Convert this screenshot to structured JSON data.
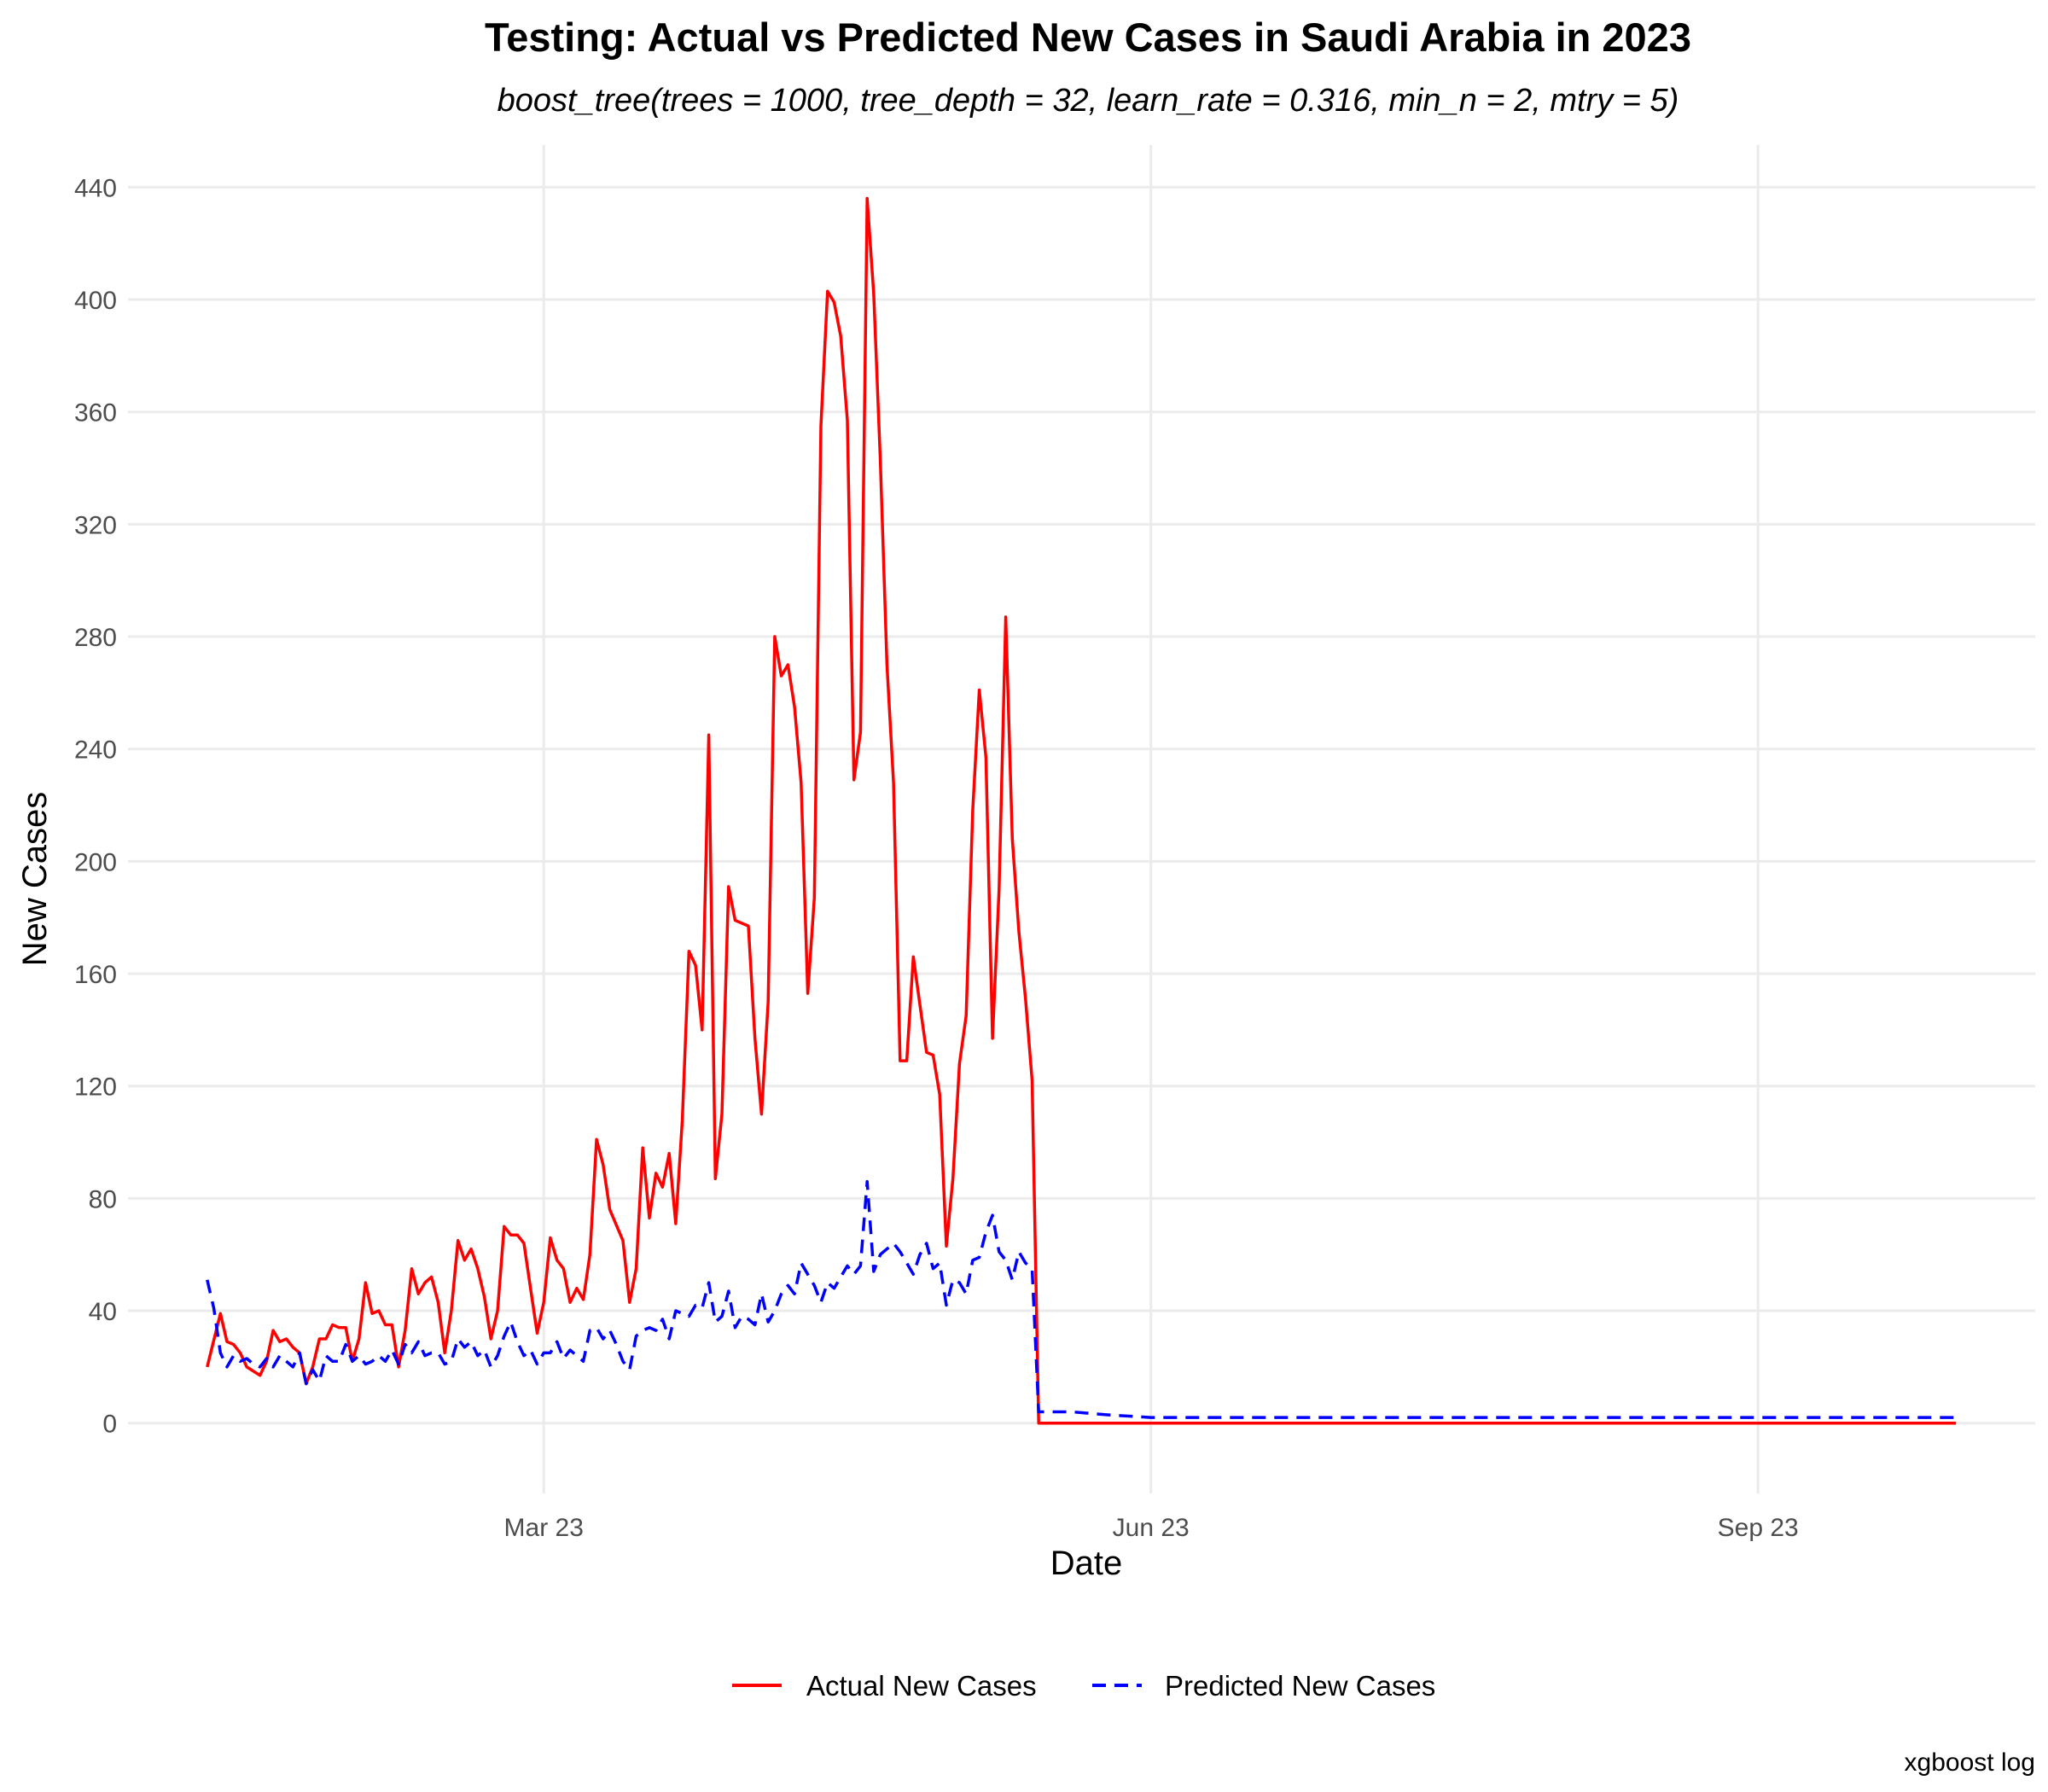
{
  "chart_data": {
    "type": "line",
    "title": "Testing: Actual vs Predicted New Cases in Saudi Arabia in 2023",
    "subtitle": "boost_tree(trees = 1000, tree_depth = 32, learn_rate = 0.316, min_n = 2, mtry = 5)",
    "xlabel": "Date",
    "ylabel": "New Cases",
    "caption": "xgboost log",
    "x_axis": {
      "type": "date",
      "range": [
        "2022-12-28",
        "2023-10-13"
      ],
      "ticks": [
        {
          "date": "2023-03-01",
          "label": "Mar 23"
        },
        {
          "date": "2023-06-01",
          "label": "Jun 23"
        },
        {
          "date": "2023-09-01",
          "label": "Sep 23"
        }
      ]
    },
    "y_axis": {
      "range": [
        -25,
        455
      ],
      "ticks": [
        0,
        40,
        80,
        120,
        160,
        200,
        240,
        280,
        320,
        360,
        400,
        440
      ]
    },
    "grid": true,
    "legend_position": "bottom",
    "series": [
      {
        "name": "Actual New Cases",
        "color": "#ff0000",
        "style": "solid",
        "points": [
          [
            "2023-01-09",
            20
          ],
          [
            "2023-01-11",
            39
          ],
          [
            "2023-01-12",
            29
          ],
          [
            "2023-01-13",
            28
          ],
          [
            "2023-01-14",
            25
          ],
          [
            "2023-01-15",
            20
          ],
          [
            "2023-01-17",
            17
          ],
          [
            "2023-01-18",
            22
          ],
          [
            "2023-01-19",
            33
          ],
          [
            "2023-01-20",
            29
          ],
          [
            "2023-01-21",
            30
          ],
          [
            "2023-01-22",
            27
          ],
          [
            "2023-01-23",
            25
          ],
          [
            "2023-01-24",
            14
          ],
          [
            "2023-01-25",
            20
          ],
          [
            "2023-01-26",
            30
          ],
          [
            "2023-01-27",
            30
          ],
          [
            "2023-01-28",
            35
          ],
          [
            "2023-01-29",
            34
          ],
          [
            "2023-01-30",
            34
          ],
          [
            "2023-01-31",
            22
          ],
          [
            "2023-02-01",
            30
          ],
          [
            "2023-02-02",
            50
          ],
          [
            "2023-02-03",
            39
          ],
          [
            "2023-02-04",
            40
          ],
          [
            "2023-02-05",
            35
          ],
          [
            "2023-02-06",
            35
          ],
          [
            "2023-02-07",
            20
          ],
          [
            "2023-02-08",
            33
          ],
          [
            "2023-02-09",
            55
          ],
          [
            "2023-02-10",
            46
          ],
          [
            "2023-02-11",
            50
          ],
          [
            "2023-02-12",
            52
          ],
          [
            "2023-02-13",
            43
          ],
          [
            "2023-02-14",
            25
          ],
          [
            "2023-02-15",
            40
          ],
          [
            "2023-02-16",
            65
          ],
          [
            "2023-02-17",
            58
          ],
          [
            "2023-02-18",
            62
          ],
          [
            "2023-02-19",
            55
          ],
          [
            "2023-02-20",
            45
          ],
          [
            "2023-02-21",
            30
          ],
          [
            "2023-02-22",
            40
          ],
          [
            "2023-02-23",
            70
          ],
          [
            "2023-02-24",
            67
          ],
          [
            "2023-02-25",
            67
          ],
          [
            "2023-02-26",
            64
          ],
          [
            "2023-02-27",
            48
          ],
          [
            "2023-02-28",
            32
          ],
          [
            "2023-03-01",
            43
          ],
          [
            "2023-03-02",
            66
          ],
          [
            "2023-03-03",
            58
          ],
          [
            "2023-03-04",
            55
          ],
          [
            "2023-03-05",
            43
          ],
          [
            "2023-03-06",
            48
          ],
          [
            "2023-03-07",
            44
          ],
          [
            "2023-03-08",
            60
          ],
          [
            "2023-03-09",
            101
          ],
          [
            "2023-03-10",
            92
          ],
          [
            "2023-03-11",
            76
          ],
          [
            "2023-03-13",
            65
          ],
          [
            "2023-03-14",
            43
          ],
          [
            "2023-03-15",
            55
          ],
          [
            "2023-03-16",
            98
          ],
          [
            "2023-03-17",
            73
          ],
          [
            "2023-03-18",
            89
          ],
          [
            "2023-03-19",
            84
          ],
          [
            "2023-03-20",
            96
          ],
          [
            "2023-03-21",
            71
          ],
          [
            "2023-03-22",
            108
          ],
          [
            "2023-03-23",
            168
          ],
          [
            "2023-03-24",
            163
          ],
          [
            "2023-03-25",
            140
          ],
          [
            "2023-03-26",
            245
          ],
          [
            "2023-03-27",
            87
          ],
          [
            "2023-03-28",
            110
          ],
          [
            "2023-03-29",
            191
          ],
          [
            "2023-03-30",
            179
          ],
          [
            "2023-03-31",
            178
          ],
          [
            "2023-04-01",
            177
          ],
          [
            "2023-04-02",
            137
          ],
          [
            "2023-04-03",
            110
          ],
          [
            "2023-04-04",
            150
          ],
          [
            "2023-04-05",
            280
          ],
          [
            "2023-04-06",
            266
          ],
          [
            "2023-04-07",
            270
          ],
          [
            "2023-04-08",
            255
          ],
          [
            "2023-04-09",
            228
          ],
          [
            "2023-04-10",
            153
          ],
          [
            "2023-04-11",
            187
          ],
          [
            "2023-04-12",
            355
          ],
          [
            "2023-04-13",
            403
          ],
          [
            "2023-04-14",
            399
          ],
          [
            "2023-04-15",
            387
          ],
          [
            "2023-04-16",
            357
          ],
          [
            "2023-04-17",
            229
          ],
          [
            "2023-04-18",
            246
          ],
          [
            "2023-04-19",
            436
          ],
          [
            "2023-04-20",
            402
          ],
          [
            "2023-04-21",
            343
          ],
          [
            "2023-04-22",
            270
          ],
          [
            "2023-04-23",
            228
          ],
          [
            "2023-04-24",
            129
          ],
          [
            "2023-04-25",
            129
          ],
          [
            "2023-04-26",
            166
          ],
          [
            "2023-04-27",
            149
          ],
          [
            "2023-04-28",
            132
          ],
          [
            "2023-04-29",
            131
          ],
          [
            "2023-04-30",
            117
          ],
          [
            "2023-05-01",
            63
          ],
          [
            "2023-05-02",
            87
          ],
          [
            "2023-05-03",
            128
          ],
          [
            "2023-05-04",
            145
          ],
          [
            "2023-05-05",
            218
          ],
          [
            "2023-05-06",
            261
          ],
          [
            "2023-05-07",
            237
          ],
          [
            "2023-05-08",
            137
          ],
          [
            "2023-05-09",
            190
          ],
          [
            "2023-05-10",
            287
          ],
          [
            "2023-05-11",
            208
          ],
          [
            "2023-05-12",
            175
          ],
          [
            "2023-05-13",
            151
          ],
          [
            "2023-05-14",
            122
          ],
          [
            "2023-05-15",
            0
          ],
          [
            "2023-10-01",
            0
          ]
        ]
      },
      {
        "name": "Predicted New Cases",
        "color": "#0000ff",
        "style": "dashed",
        "points": [
          [
            "2023-01-09",
            51
          ],
          [
            "2023-01-10",
            41
          ],
          [
            "2023-01-11",
            25
          ],
          [
            "2023-01-12",
            20
          ],
          [
            "2023-01-13",
            24
          ],
          [
            "2023-01-14",
            22
          ],
          [
            "2023-01-15",
            23
          ],
          [
            "2023-01-16",
            21
          ],
          [
            "2023-01-17",
            20
          ],
          [
            "2023-01-18",
            23
          ],
          [
            "2023-01-19",
            20
          ],
          [
            "2023-01-20",
            24
          ],
          [
            "2023-01-21",
            22
          ],
          [
            "2023-01-22",
            20
          ],
          [
            "2023-01-23",
            25
          ],
          [
            "2023-01-24",
            14
          ],
          [
            "2023-01-25",
            19
          ],
          [
            "2023-01-26",
            15
          ],
          [
            "2023-01-27",
            24
          ],
          [
            "2023-01-28",
            22
          ],
          [
            "2023-01-29",
            22
          ],
          [
            "2023-01-30",
            28
          ],
          [
            "2023-01-31",
            22
          ],
          [
            "2023-02-01",
            24
          ],
          [
            "2023-02-02",
            21
          ],
          [
            "2023-02-03",
            22
          ],
          [
            "2023-02-04",
            24
          ],
          [
            "2023-02-05",
            22
          ],
          [
            "2023-02-06",
            26
          ],
          [
            "2023-02-07",
            21
          ],
          [
            "2023-02-08",
            28
          ],
          [
            "2023-02-09",
            25
          ],
          [
            "2023-02-10",
            29
          ],
          [
            "2023-02-11",
            24
          ],
          [
            "2023-02-12",
            25
          ],
          [
            "2023-02-13",
            25
          ],
          [
            "2023-02-14",
            21
          ],
          [
            "2023-02-15",
            22
          ],
          [
            "2023-02-16",
            30
          ],
          [
            "2023-02-17",
            27
          ],
          [
            "2023-02-18",
            29
          ],
          [
            "2023-02-19",
            24
          ],
          [
            "2023-02-20",
            26
          ],
          [
            "2023-02-21",
            20
          ],
          [
            "2023-02-22",
            24
          ],
          [
            "2023-02-23",
            31
          ],
          [
            "2023-02-24",
            36
          ],
          [
            "2023-02-25",
            29
          ],
          [
            "2023-02-26",
            24
          ],
          [
            "2023-02-27",
            26
          ],
          [
            "2023-02-28",
            21
          ],
          [
            "2023-03-01",
            25
          ],
          [
            "2023-03-02",
            25
          ],
          [
            "2023-03-03",
            29
          ],
          [
            "2023-03-04",
            23
          ],
          [
            "2023-03-05",
            26
          ],
          [
            "2023-03-06",
            24
          ],
          [
            "2023-03-07",
            22
          ],
          [
            "2023-03-08",
            33
          ],
          [
            "2023-03-09",
            34
          ],
          [
            "2023-03-10",
            30
          ],
          [
            "2023-03-11",
            33
          ],
          [
            "2023-03-12",
            28
          ],
          [
            "2023-03-13",
            22
          ],
          [
            "2023-03-14",
            19
          ],
          [
            "2023-03-15",
            31
          ],
          [
            "2023-03-16",
            33
          ],
          [
            "2023-03-17",
            34
          ],
          [
            "2023-03-18",
            33
          ],
          [
            "2023-03-19",
            37
          ],
          [
            "2023-03-20",
            30
          ],
          [
            "2023-03-21",
            40
          ],
          [
            "2023-03-22",
            39
          ],
          [
            "2023-03-23",
            38
          ],
          [
            "2023-03-24",
            42
          ],
          [
            "2023-03-25",
            41
          ],
          [
            "2023-03-26",
            50
          ],
          [
            "2023-03-27",
            36
          ],
          [
            "2023-03-28",
            38
          ],
          [
            "2023-03-29",
            47
          ],
          [
            "2023-03-30",
            34
          ],
          [
            "2023-03-31",
            38
          ],
          [
            "2023-04-01",
            37
          ],
          [
            "2023-04-02",
            35
          ],
          [
            "2023-04-03",
            46
          ],
          [
            "2023-04-04",
            36
          ],
          [
            "2023-04-05",
            40
          ],
          [
            "2023-04-06",
            46
          ],
          [
            "2023-04-07",
            49
          ],
          [
            "2023-04-08",
            46
          ],
          [
            "2023-04-09",
            57
          ],
          [
            "2023-04-10",
            53
          ],
          [
            "2023-04-11",
            49
          ],
          [
            "2023-04-12",
            43
          ],
          [
            "2023-04-13",
            50
          ],
          [
            "2023-04-14",
            48
          ],
          [
            "2023-04-15",
            52
          ],
          [
            "2023-04-16",
            56
          ],
          [
            "2023-04-17",
            53
          ],
          [
            "2023-04-18",
            56
          ],
          [
            "2023-04-19",
            86
          ],
          [
            "2023-04-20",
            54
          ],
          [
            "2023-04-21",
            60
          ],
          [
            "2023-04-22",
            62
          ],
          [
            "2023-04-23",
            64
          ],
          [
            "2023-04-24",
            61
          ],
          [
            "2023-04-25",
            57
          ],
          [
            "2023-04-26",
            53
          ],
          [
            "2023-04-27",
            60
          ],
          [
            "2023-04-28",
            64
          ],
          [
            "2023-04-29",
            55
          ],
          [
            "2023-04-30",
            57
          ],
          [
            "2023-05-01",
            42
          ],
          [
            "2023-05-02",
            51
          ],
          [
            "2023-05-03",
            50
          ],
          [
            "2023-05-04",
            46
          ],
          [
            "2023-05-05",
            58
          ],
          [
            "2023-05-06",
            59
          ],
          [
            "2023-05-07",
            68
          ],
          [
            "2023-05-08",
            74
          ],
          [
            "2023-05-09",
            61
          ],
          [
            "2023-05-10",
            58
          ],
          [
            "2023-05-11",
            51
          ],
          [
            "2023-05-12",
            61
          ],
          [
            "2023-05-13",
            57
          ],
          [
            "2023-05-14",
            55
          ],
          [
            "2023-05-15",
            4
          ],
          [
            "2023-05-20",
            4
          ],
          [
            "2023-05-25",
            3
          ],
          [
            "2023-06-01",
            2
          ],
          [
            "2023-06-15",
            2
          ],
          [
            "2023-07-01",
            2
          ],
          [
            "2023-07-15",
            2
          ],
          [
            "2023-08-01",
            2
          ],
          [
            "2023-08-15",
            2
          ],
          [
            "2023-09-01",
            2
          ],
          [
            "2023-09-15",
            2
          ],
          [
            "2023-10-01",
            2
          ]
        ]
      }
    ]
  }
}
